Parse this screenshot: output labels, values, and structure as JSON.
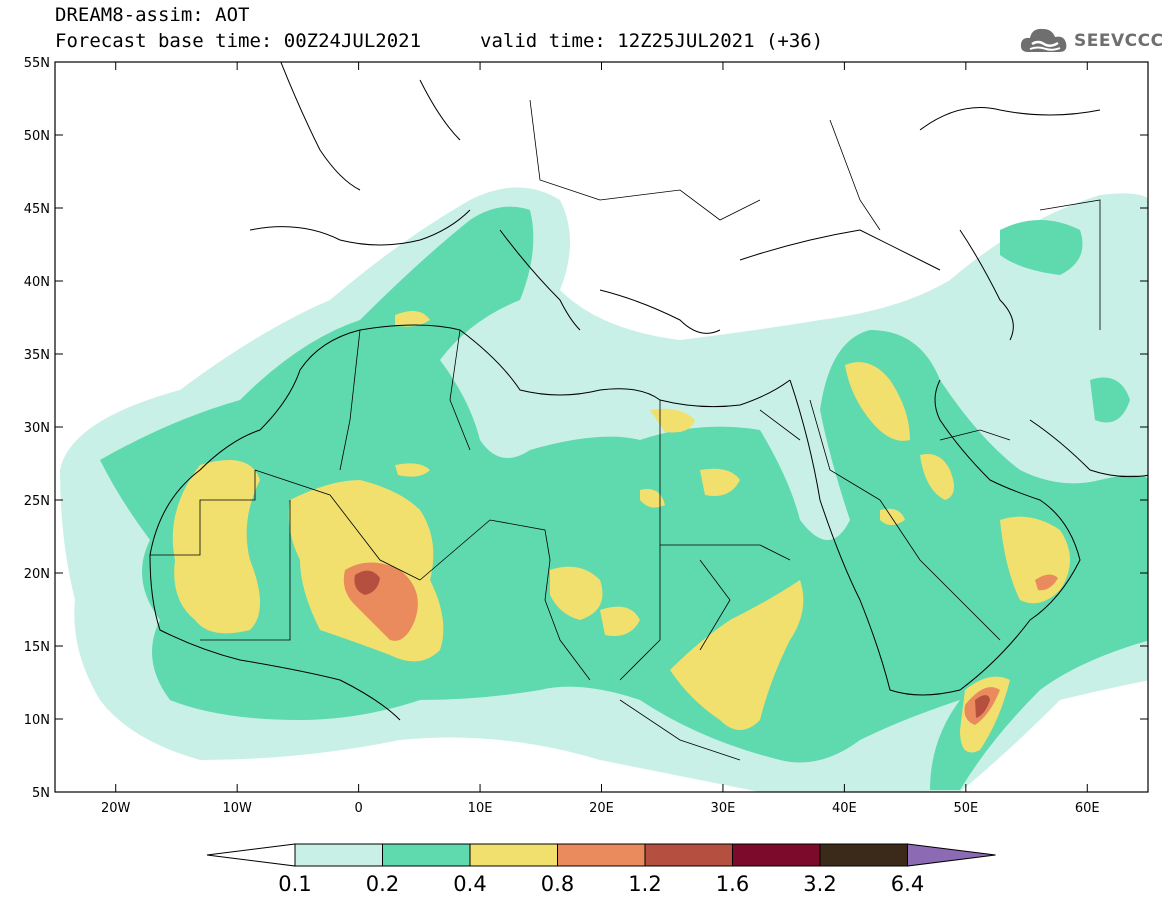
{
  "header": {
    "line1": "DREAM8-assim: AOT",
    "line2": "Forecast base time: 00Z24JUL2021",
    "valid": "valid time: 12Z25JUL2021 (+36)"
  },
  "logo": {
    "name": "SEEVCCC",
    "icon": "cloud-logo-icon"
  },
  "map": {
    "lat_labels": [
      "55N",
      "50N",
      "45N",
      "40N",
      "35N",
      "30N",
      "25N",
      "20N",
      "15N",
      "10N",
      "5N"
    ],
    "lon_labels": [
      "20W",
      "10W",
      "0",
      "10E",
      "20E",
      "30E",
      "40E",
      "50E",
      "60E"
    ],
    "lat_values": [
      55,
      50,
      45,
      40,
      35,
      30,
      25,
      20,
      15,
      10,
      5
    ],
    "lon_values": [
      -20,
      -10,
      0,
      10,
      20,
      30,
      40,
      50,
      60
    ],
    "extent": {
      "lon_min": -25,
      "lon_max": 65,
      "lat_min": 5,
      "lat_max": 55
    }
  },
  "colorbar": {
    "labels": [
      "0.1",
      "0.2",
      "0.4",
      "0.8",
      "1.2",
      "1.6",
      "3.2",
      "6.4"
    ],
    "colors": [
      "#c8f0e6",
      "#5fd9ae",
      "#f2e06e",
      "#e98b5c",
      "#b54f40",
      "#7c0a2a",
      "#3b2a1a",
      "#8c6ab4"
    ],
    "under_color": "#ffffff",
    "over_color": "#8c6ab4"
  }
}
